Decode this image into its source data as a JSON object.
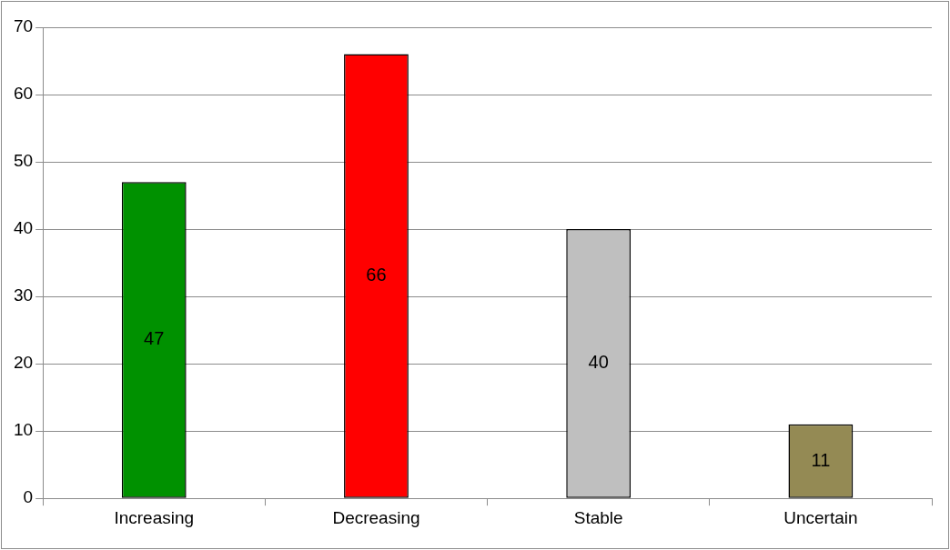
{
  "chart_data": {
    "type": "bar",
    "categories": [
      "Increasing",
      "Decreasing",
      "Stable",
      "Uncertain"
    ],
    "values": [
      47,
      66,
      40,
      11
    ],
    "colors": [
      "#009100",
      "#ff0000",
      "#bfbfbf",
      "#948a54"
    ],
    "ylim": [
      0,
      70
    ],
    "yticks": [
      0,
      10,
      20,
      30,
      40,
      50,
      60,
      70
    ],
    "grid": "y",
    "legend": false,
    "data_labels": true
  }
}
